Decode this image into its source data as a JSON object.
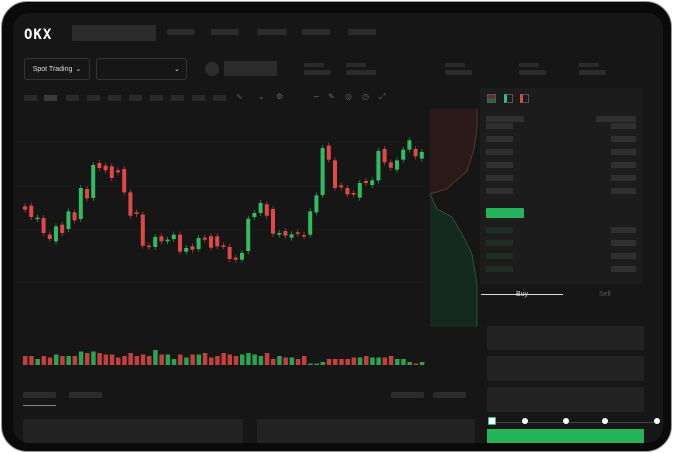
{
  "header": {
    "logo": "OKX"
  },
  "market_selector": {
    "label": "Spot Trading",
    "chevron": "chevron-down-icon"
  },
  "pair_selector": {
    "chevron": "chevron-down-icon"
  },
  "order_form": {
    "tabs": [
      {
        "label": "Buy",
        "active": true
      },
      {
        "label": "Sell",
        "active": false
      }
    ],
    "slider_percent": 0
  },
  "colors": {
    "up": "#2ebd5f",
    "down": "#e04848",
    "background": "#161616",
    "accent": "#25b35c"
  },
  "chart_data": {
    "type": "candlestick",
    "candles": [
      {
        "o": 250,
        "c": 240,
        "color": "down"
      },
      {
        "o": 252,
        "c": 218,
        "color": "down"
      },
      {
        "o": 212,
        "c": 216,
        "color": "up"
      },
      {
        "o": 215,
        "c": 170,
        "color": "down"
      },
      {
        "o": 165,
        "c": 152,
        "color": "down"
      },
      {
        "o": 145,
        "c": 190,
        "color": "up"
      },
      {
        "o": 195,
        "c": 170,
        "color": "down"
      },
      {
        "o": 182,
        "c": 235,
        "color": "up"
      },
      {
        "o": 232,
        "c": 208,
        "color": "down"
      },
      {
        "o": 212,
        "c": 305,
        "color": "up"
      },
      {
        "o": 302,
        "c": 274,
        "color": "down"
      },
      {
        "o": 275,
        "c": 374,
        "color": "up"
      },
      {
        "o": 380,
        "c": 365,
        "color": "down"
      },
      {
        "o": 372,
        "c": 358,
        "color": "down"
      },
      {
        "o": 370,
        "c": 335,
        "color": "down"
      },
      {
        "o": 358,
        "c": 352,
        "color": "down"
      },
      {
        "o": 362,
        "c": 292,
        "color": "down"
      },
      {
        "o": 292,
        "c": 222,
        "color": "down"
      },
      {
        "o": 232,
        "c": 227,
        "color": "down"
      },
      {
        "o": 225,
        "c": 132,
        "color": "down"
      },
      {
        "o": 132,
        "c": 128,
        "color": "down"
      },
      {
        "o": 128,
        "c": 158,
        "color": "up"
      },
      {
        "o": 160,
        "c": 145,
        "color": "down"
      },
      {
        "o": 145,
        "c": 150,
        "color": "up"
      },
      {
        "o": 152,
        "c": 165,
        "color": "up"
      },
      {
        "o": 165,
        "c": 114,
        "color": "down"
      },
      {
        "o": 114,
        "c": 125,
        "color": "up"
      },
      {
        "o": 130,
        "c": 120,
        "color": "down"
      },
      {
        "o": 122,
        "c": 155,
        "color": "up"
      },
      {
        "o": 156,
        "c": 150,
        "color": "down"
      },
      {
        "o": 160,
        "c": 126,
        "color": "down"
      },
      {
        "o": 160,
        "c": 130,
        "color": "down"
      },
      {
        "o": 133,
        "c": 130,
        "color": "down"
      },
      {
        "o": 128,
        "c": 92,
        "color": "down"
      },
      {
        "o": 96,
        "c": 90,
        "color": "down"
      },
      {
        "o": 90,
        "c": 110,
        "color": "up"
      },
      {
        "o": 116,
        "c": 213,
        "color": "up"
      },
      {
        "o": 218,
        "c": 230,
        "color": "up"
      },
      {
        "o": 230,
        "c": 260,
        "color": "up"
      },
      {
        "o": 256,
        "c": 222,
        "color": "down"
      },
      {
        "o": 242,
        "c": 168,
        "color": "down"
      },
      {
        "o": 165,
        "c": 170,
        "color": "up"
      },
      {
        "o": 176,
        "c": 162,
        "color": "down"
      },
      {
        "o": 156,
        "c": 166,
        "color": "up"
      },
      {
        "o": 172,
        "c": 168,
        "color": "down"
      },
      {
        "o": 164,
        "c": 160,
        "color": "down"
      },
      {
        "o": 165,
        "c": 235,
        "color": "up"
      },
      {
        "o": 232,
        "c": 283,
        "color": "up"
      },
      {
        "o": 284,
        "c": 425,
        "color": "up"
      },
      {
        "o": 432,
        "c": 390,
        "color": "down"
      },
      {
        "o": 388,
        "c": 305,
        "color": "down"
      },
      {
        "o": 313,
        "c": 307,
        "color": "down"
      },
      {
        "o": 305,
        "c": 286,
        "color": "down"
      },
      {
        "o": 290,
        "c": 285,
        "color": "down"
      },
      {
        "o": 276,
        "c": 320,
        "color": "up"
      },
      {
        "o": 326,
        "c": 320,
        "color": "down"
      },
      {
        "o": 314,
        "c": 328,
        "color": "up"
      },
      {
        "o": 328,
        "c": 416,
        "color": "up"
      },
      {
        "o": 422,
        "c": 382,
        "color": "down"
      },
      {
        "o": 382,
        "c": 366,
        "color": "down"
      },
      {
        "o": 360,
        "c": 388,
        "color": "up"
      },
      {
        "o": 390,
        "c": 420,
        "color": "up"
      },
      {
        "o": 420,
        "c": 448,
        "color": "up"
      },
      {
        "o": 422,
        "c": 400,
        "color": "down"
      },
      {
        "o": 393,
        "c": 413,
        "color": "up"
      }
    ],
    "volumes": [
      6,
      6,
      4,
      6,
      5,
      7,
      6,
      6,
      6,
      9,
      8,
      9,
      8,
      7,
      7,
      5,
      6,
      8,
      6,
      7,
      6,
      10,
      7,
      7,
      4,
      7,
      5,
      7,
      7,
      8,
      5,
      6,
      8,
      7,
      6,
      7,
      8,
      7,
      6,
      8,
      4,
      6,
      5,
      5,
      4,
      6,
      1,
      1,
      2,
      4,
      4,
      4,
      4,
      5,
      5,
      6,
      5,
      5,
      5,
      6,
      4,
      4,
      2,
      1,
      2
    ]
  }
}
